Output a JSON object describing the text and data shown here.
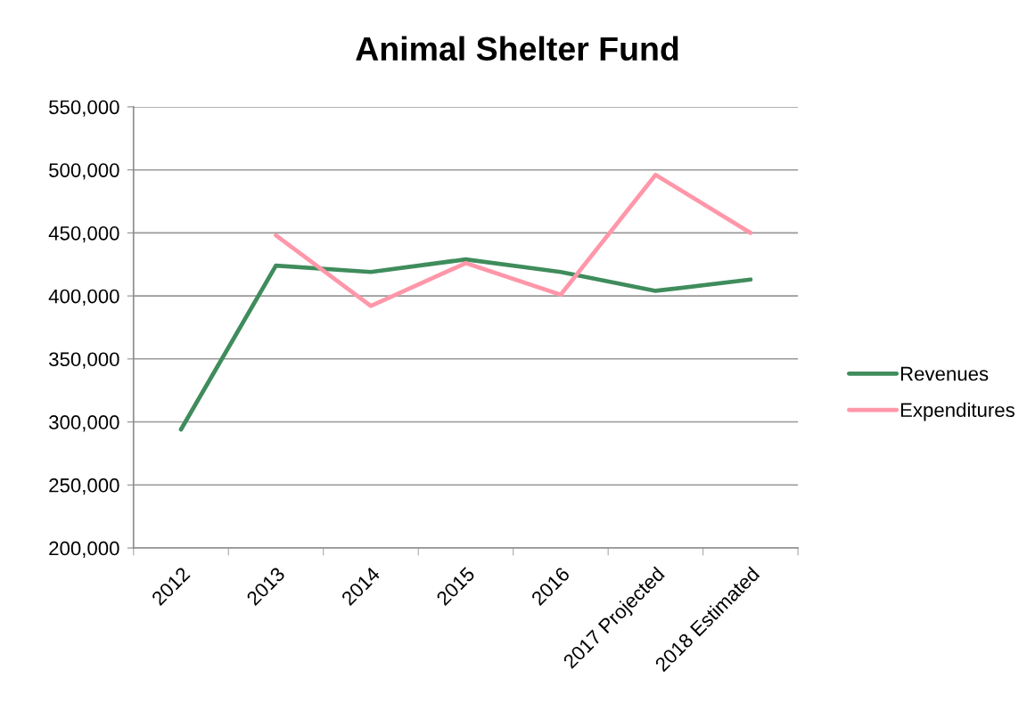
{
  "chart_data": {
    "type": "line",
    "title": "Animal Shelter Fund",
    "categories": [
      "2012",
      "2013",
      "2014",
      "2015",
      "2016",
      "2017 Projected",
      "2018 Estimated"
    ],
    "series": [
      {
        "name": "Revenues",
        "color": "#3f8c5c",
        "values": [
          294000,
          424000,
          419000,
          429000,
          419000,
          404000,
          413000
        ]
      },
      {
        "name": "Expenditures",
        "color": "#ff97a9",
        "values": [
          null,
          448000,
          392000,
          426000,
          401000,
          496000,
          450000
        ]
      }
    ],
    "ylim": [
      200000,
      550000
    ],
    "yticks": [
      {
        "value": 200000,
        "label": "200,000"
      },
      {
        "value": 250000,
        "label": "250,000"
      },
      {
        "value": 300000,
        "label": "300,000"
      },
      {
        "value": 350000,
        "label": "350,000"
      },
      {
        "value": 400000,
        "label": "400,000"
      },
      {
        "value": 450000,
        "label": "450,000"
      },
      {
        "value": 500000,
        "label": "500,000"
      },
      {
        "value": 550000,
        "label": "550,000"
      }
    ],
    "grid": "y",
    "legend": "right",
    "line_style": "solid"
  }
}
